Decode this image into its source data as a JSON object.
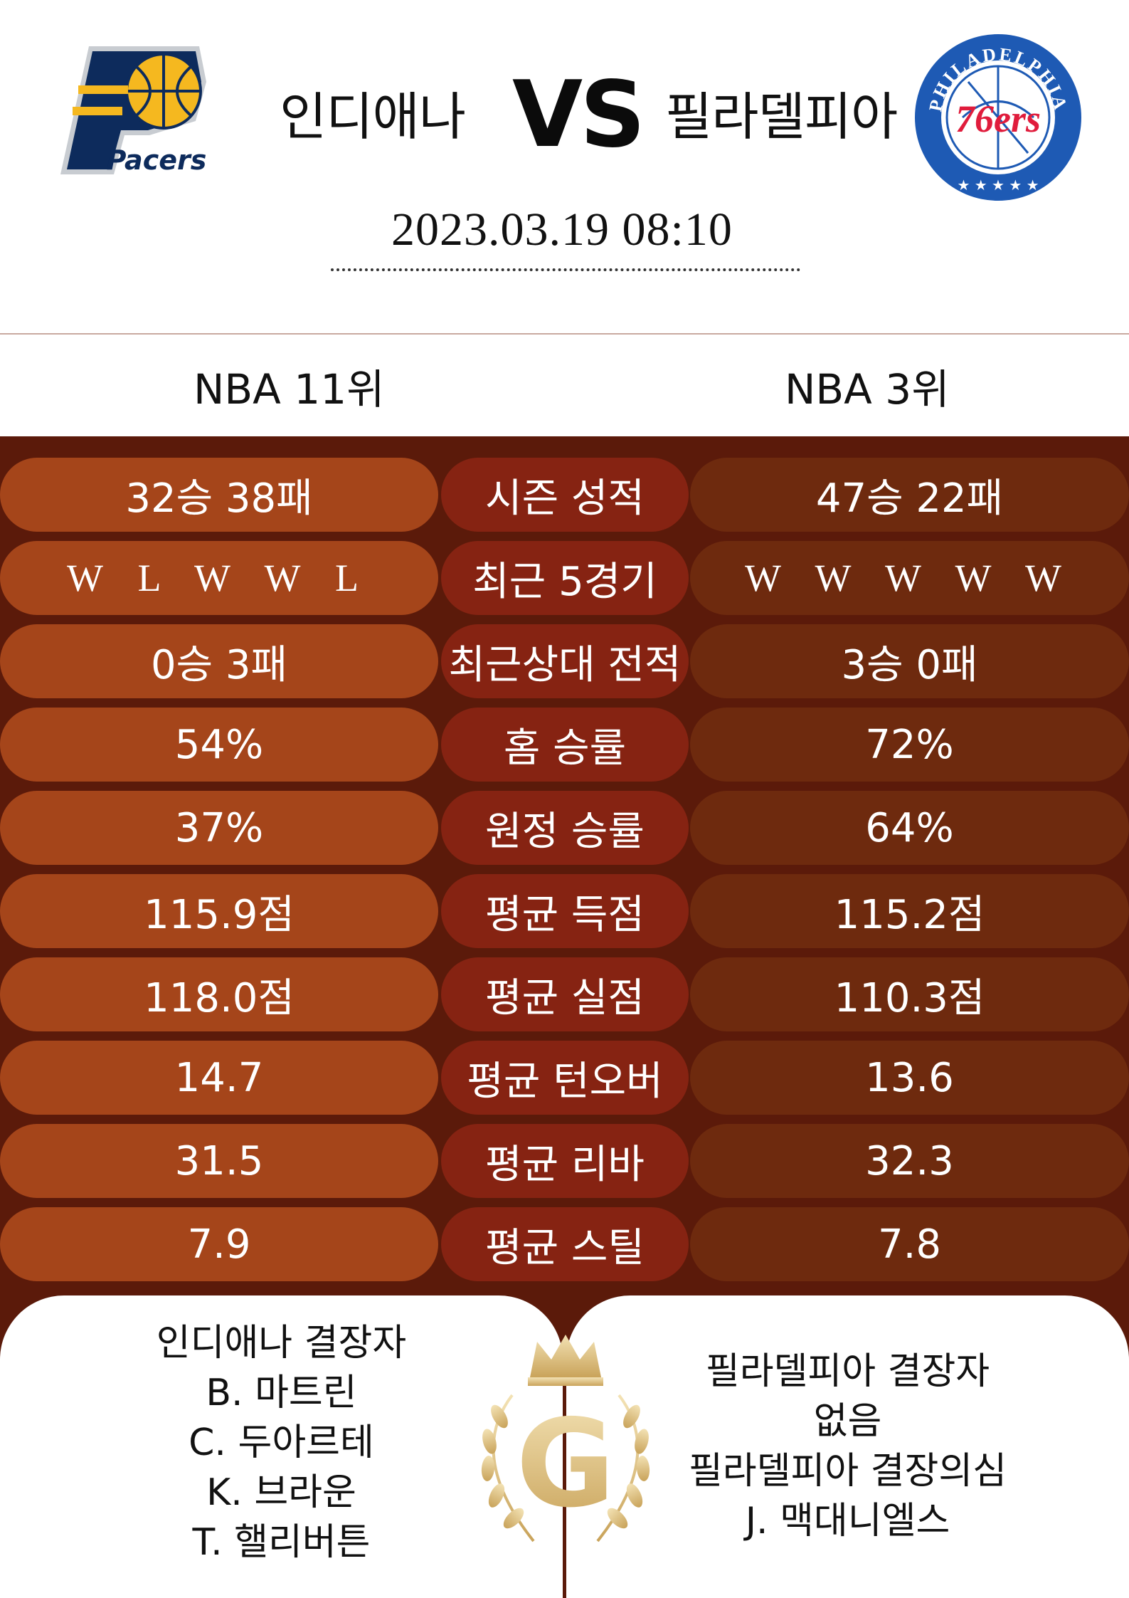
{
  "match": {
    "home_team": "인디애나",
    "away_team": "필라델피아",
    "vs": "VS",
    "datetime": "2023.03.19  08:10",
    "home_rank": "NBA 11위",
    "away_rank": "NBA 3위",
    "home_logo_text": "Pacers",
    "away_logo_ring": "PHILADELPHIA",
    "away_logo_main": "76ers"
  },
  "stats": [
    {
      "label": "시즌 성적",
      "home": "32승 38패",
      "away": "47승 22패"
    },
    {
      "label": "최근 5경기",
      "home": "W L W W L",
      "away": "W W W W W"
    },
    {
      "label": "최근상대 전적",
      "home": "0승 3패",
      "away": "3승 0패"
    },
    {
      "label": "홈 승률",
      "home": "54%",
      "away": "72%"
    },
    {
      "label": "원정 승률",
      "home": "37%",
      "away": "64%"
    },
    {
      "label": "평균 득점",
      "home": "115.9점",
      "away": "115.2점"
    },
    {
      "label": "평균 실점",
      "home": "118.0점",
      "away": "110.3점"
    },
    {
      "label": "평균 턴오버",
      "home": "14.7",
      "away": "13.6"
    },
    {
      "label": "평균 리바",
      "home": "31.5",
      "away": "32.3"
    },
    {
      "label": "평균 스틸",
      "home": "7.9",
      "away": "7.8"
    }
  ],
  "absences": {
    "home": [
      "인디애나 결장자",
      "B. 마트린",
      "C. 두아르테",
      "K. 브라운",
      "T. 핼리버튼"
    ],
    "away": [
      "필라델피아 결장자",
      "없음",
      "필라델피아 결장의심",
      "J. 맥대니엘스"
    ]
  },
  "emblem_letter": "G",
  "colors": {
    "home_pill": "#a5451a",
    "label_pill": "#862312",
    "away_pill": "#6e2a0e",
    "background": "#5b1a0a",
    "gold": "#d9bf85"
  }
}
